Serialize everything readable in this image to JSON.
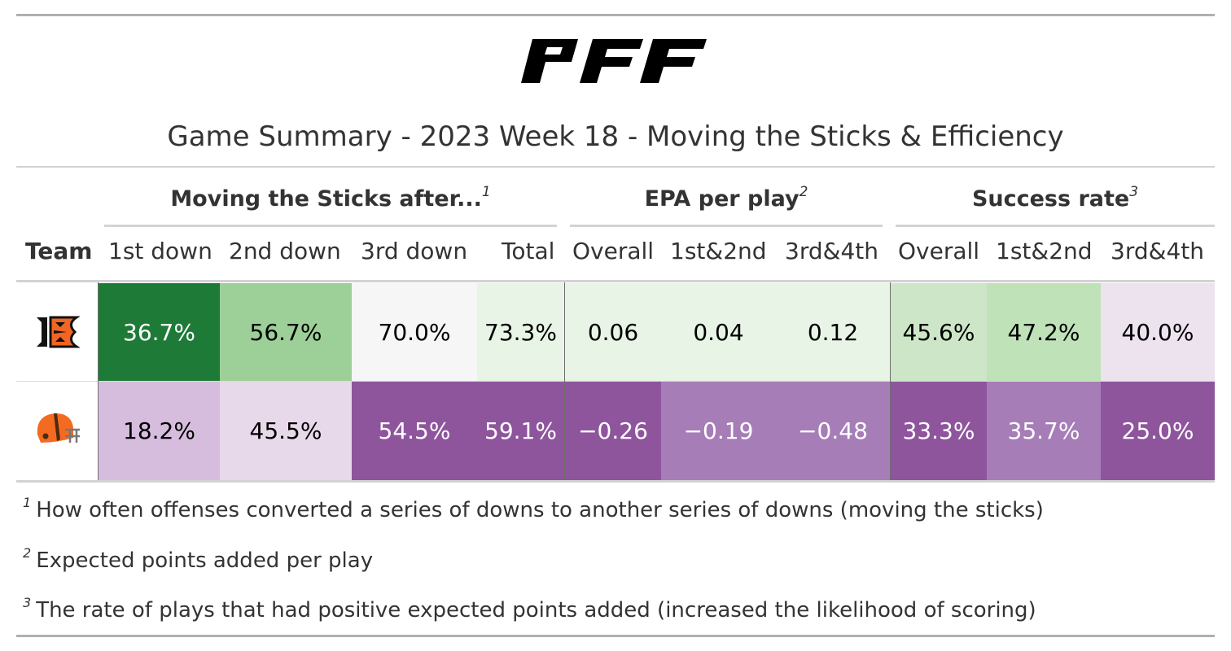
{
  "logo": {
    "text": "PFF",
    "icon": "pff-logo"
  },
  "title": "Game Summary - 2023 Week 18 - Moving the Sticks & Efficiency",
  "spanners": [
    {
      "label": "Moving the Sticks after...",
      "note": "1"
    },
    {
      "label": "EPA per play",
      "note": "2"
    },
    {
      "label": "Success rate",
      "note": "3"
    }
  ],
  "columns": [
    "Team",
    "1st down",
    "2nd down",
    "3rd down",
    "Total",
    "Overall",
    "1st&2nd",
    "3rd&4th",
    "Overall",
    "1st&2nd",
    "3rd&4th"
  ],
  "rows": [
    {
      "team_icon": "bengals-logo",
      "values": [
        "36.7%",
        "56.7%",
        "70.0%",
        "73.3%",
        "0.06",
        "0.04",
        "0.12",
        "45.6%",
        "47.2%",
        "40.0%"
      ],
      "fills": [
        "#1e7b37",
        "#9dcf98",
        "#f6f6f6",
        "#e8f4e6",
        "#e8f4e6",
        "#e8f4e6",
        "#e8f4e6",
        "#cde6c8",
        "#bfe2b8",
        "#ece3ef"
      ],
      "text_colors": [
        "#ffffff",
        "#000000",
        "#000000",
        "#000000",
        "#000000",
        "#000000",
        "#000000",
        "#000000",
        "#000000",
        "#000000"
      ]
    },
    {
      "team_icon": "browns-logo",
      "values": [
        "18.2%",
        "45.5%",
        "54.5%",
        "59.1%",
        "−0.26",
        "−0.19",
        "−0.48",
        "33.3%",
        "35.7%",
        "25.0%"
      ],
      "fills": [
        "#d6bddd",
        "#e8d9ea",
        "#8e559d",
        "#8e559d",
        "#8e559d",
        "#a67db7",
        "#a67db7",
        "#8e559d",
        "#a67db7",
        "#8e559d"
      ],
      "text_colors": [
        "#000000",
        "#000000",
        "#ffffff",
        "#ffffff",
        "#ffffff",
        "#ffffff",
        "#ffffff",
        "#ffffff",
        "#ffffff",
        "#ffffff"
      ]
    }
  ],
  "footnotes": [
    {
      "mark": "1",
      "text": "How often offenses converted a series of downs to another series of downs (moving the sticks)"
    },
    {
      "mark": "2",
      "text": "Expected points added per play"
    },
    {
      "mark": "3",
      "text": "The rate of plays that had positive expected points added (increased the likelihood of scoring)"
    }
  ]
}
